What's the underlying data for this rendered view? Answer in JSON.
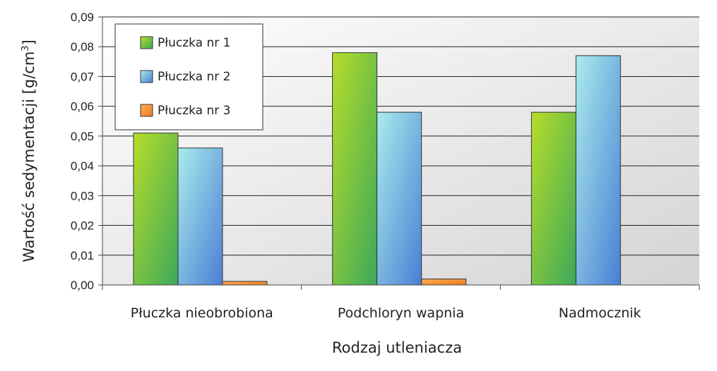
{
  "chart_data": {
    "type": "bar",
    "title": "",
    "xlabel": "Rodzaj utleniacza",
    "ylabel_main": "Wartość sedymentacji [g/cm",
    "ylabel_sup": "3",
    "ylabel_end": "]",
    "ylim": [
      0,
      0.09
    ],
    "ytick_step": 0.01,
    "ytick_labels": [
      "0,00",
      "0,01",
      "0,02",
      "0,03",
      "0,04",
      "0,05",
      "0,06",
      "0,07",
      "0,08",
      "0,09"
    ],
    "categories": [
      "Płuczka nieobrobiona",
      "Podchloryn wapnia",
      "Nadmocznik"
    ],
    "series": [
      {
        "name": "Płuczka nr 1",
        "values": [
          0.051,
          0.078,
          0.058
        ],
        "color_light": "#b6dd2a",
        "color_dark": "#3da85a"
      },
      {
        "name": "Płuczka nr 2",
        "values": [
          0.046,
          0.058,
          0.077
        ],
        "color_light": "#a9ecec",
        "color_dark": "#4a7fd4"
      },
      {
        "name": "Płuczka nr 3",
        "values": [
          0.0012,
          0.002,
          null
        ],
        "color_light": "#ffb055",
        "color_dark": "#ea7a1a"
      }
    ],
    "legend_position": "top-left",
    "grid": true
  }
}
